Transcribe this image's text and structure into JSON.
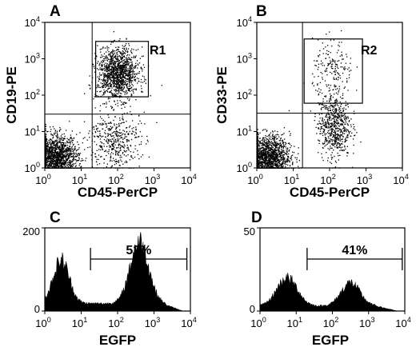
{
  "chart_data": [
    {
      "type": "scatter",
      "panel": "A",
      "xlabel": "CD45-PerCP",
      "ylabel": "CD19-PE",
      "x_scale": "log",
      "y_scale": "log",
      "xlim": [
        1,
        10000
      ],
      "ylim": [
        1,
        10000
      ],
      "x_ticks": [
        {
          "base": "10",
          "exp": "0"
        },
        {
          "base": "10",
          "exp": "1"
        },
        {
          "base": "10",
          "exp": "2"
        },
        {
          "base": "10",
          "exp": "3"
        },
        {
          "base": "10",
          "exp": "4"
        }
      ],
      "y_ticks": [
        {
          "base": "10",
          "exp": "0"
        },
        {
          "base": "10",
          "exp": "1"
        },
        {
          "base": "10",
          "exp": "2"
        },
        {
          "base": "10",
          "exp": "3"
        },
        {
          "base": "10",
          "exp": "4"
        }
      ],
      "quadrant_lines": {
        "x": 20,
        "y": 30
      },
      "gate": {
        "label": "R1",
        "x": [
          25,
          700
        ],
        "y": [
          90,
          3000
        ]
      },
      "populations": [
        {
          "x_center": 100,
          "y_center": 400,
          "x_spread_decades": 0.28,
          "y_spread_decades": 0.35,
          "count": 1300
        },
        {
          "x_center": 2,
          "y_center": 2,
          "x_spread_decades": 0.3,
          "y_spread_decades": 0.3,
          "count": 1500
        },
        {
          "x_center": 80,
          "y_center": 6,
          "x_spread_decades": 0.35,
          "y_spread_decades": 0.4,
          "count": 450
        }
      ]
    },
    {
      "type": "scatter",
      "panel": "B",
      "xlabel": "CD45-PerCP",
      "ylabel": "CD33-PE",
      "x_scale": "log",
      "y_scale": "log",
      "xlim": [
        1,
        10000
      ],
      "ylim": [
        1,
        10000
      ],
      "x_ticks": [
        {
          "base": "10",
          "exp": "0"
        },
        {
          "base": "10",
          "exp": "1"
        },
        {
          "base": "10",
          "exp": "2"
        },
        {
          "base": "10",
          "exp": "3"
        },
        {
          "base": "10",
          "exp": "4"
        }
      ],
      "y_ticks": [
        {
          "base": "10",
          "exp": "0"
        },
        {
          "base": "10",
          "exp": "1"
        },
        {
          "base": "10",
          "exp": "2"
        },
        {
          "base": "10",
          "exp": "3"
        },
        {
          "base": "10",
          "exp": "4"
        }
      ],
      "quadrant_lines": {
        "x": 18,
        "y": 32
      },
      "gate": {
        "label": "R2",
        "x": [
          20,
          800
        ],
        "y": [
          60,
          3500
        ]
      },
      "populations": [
        {
          "x_center": 2,
          "y_center": 2,
          "x_spread_decades": 0.3,
          "y_spread_decades": 0.3,
          "count": 1500
        },
        {
          "x_center": 130,
          "y_center": 15,
          "x_spread_decades": 0.22,
          "y_spread_decades": 0.45,
          "count": 650
        },
        {
          "x_center": 120,
          "y_center": 500,
          "x_spread_decades": 0.28,
          "y_spread_decades": 0.4,
          "count": 180
        }
      ]
    },
    {
      "type": "area",
      "panel": "C",
      "xlabel": "EGFP",
      "ylabel": "",
      "x_scale": "log",
      "xlim": [
        1,
        10000
      ],
      "ylim": [
        0,
        200
      ],
      "x_ticks": [
        {
          "base": "10",
          "exp": "0"
        },
        {
          "base": "10",
          "exp": "1"
        },
        {
          "base": "10",
          "exp": "2"
        },
        {
          "base": "10",
          "exp": "3"
        },
        {
          "base": "10",
          "exp": "4"
        }
      ],
      "y_ticks": [
        "0",
        "200"
      ],
      "peaks": [
        {
          "center_log10": 0.45,
          "width_log10": 0.22,
          "height": 105
        },
        {
          "center_log10": 2.6,
          "width_log10": 0.25,
          "height": 150
        }
      ],
      "baseline": 18,
      "marker": {
        "label": "52%",
        "x_start": 18,
        "x_end": 8000
      }
    },
    {
      "type": "area",
      "panel": "D",
      "xlabel": "EGFP",
      "ylabel": "",
      "x_scale": "log",
      "xlim": [
        1,
        10000
      ],
      "ylim": [
        0,
        50
      ],
      "x_ticks": [
        {
          "base": "10",
          "exp": "0"
        },
        {
          "base": "10",
          "exp": "1"
        },
        {
          "base": "10",
          "exp": "2"
        },
        {
          "base": "10",
          "exp": "3"
        },
        {
          "base": "10",
          "exp": "4"
        }
      ],
      "y_ticks": [
        "0",
        "50"
      ],
      "peaks": [
        {
          "center_log10": 0.75,
          "width_log10": 0.28,
          "height": 17
        },
        {
          "center_log10": 2.5,
          "width_log10": 0.26,
          "height": 14
        }
      ],
      "baseline": 3,
      "marker": {
        "label": "41%",
        "x_start": 20,
        "x_end": 8500
      }
    }
  ]
}
